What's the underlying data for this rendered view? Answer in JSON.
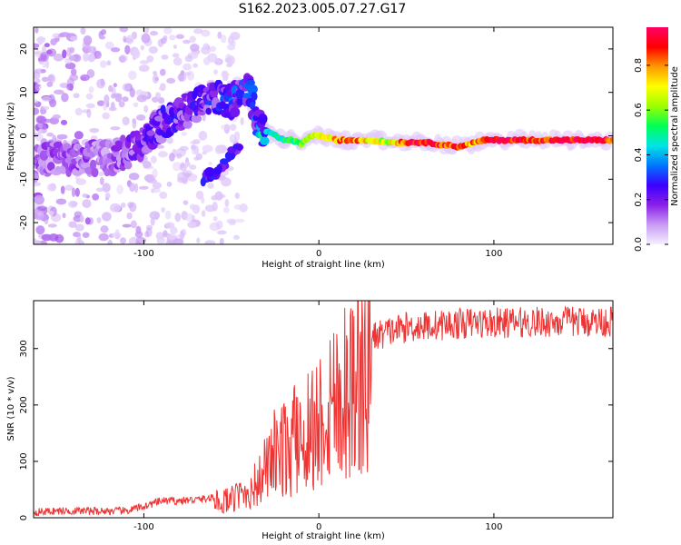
{
  "title": "S162.2023.005.07.27.G17",
  "chart_data": [
    {
      "type": "heatmap",
      "xlabel": "Height of straight line (km)",
      "ylabel": "Frequency (Hz)",
      "xlim": [
        -163,
        168
      ],
      "ylim": [
        -25,
        25
      ],
      "xticks": [
        "-100",
        "0",
        "100"
      ],
      "xtick_values": [
        -100,
        0,
        100
      ],
      "yticks": [
        "-20",
        "-10",
        "0",
        "10",
        "20"
      ],
      "ytick_values": [
        -20,
        -10,
        0,
        10,
        20
      ],
      "colorbar": {
        "label": "Normalized spectral amplitude",
        "range": [
          0,
          0.97
        ],
        "ticks": [
          "0.0",
          "0.2",
          "0.4",
          "0.6",
          "0.8"
        ],
        "tick_values": [
          0.0,
          0.2,
          0.4,
          0.6,
          0.8
        ],
        "colormap": [
          "#f5f0ff",
          "#c89bf5",
          "#8a1fe8",
          "#3b00ff",
          "#0077ff",
          "#00e5e5",
          "#00ff55",
          "#9cff00",
          "#ffff00",
          "#ff9900",
          "#ff0000",
          "#ff0066"
        ]
      },
      "ridge": {
        "x": [
          -160,
          -140,
          -120,
          -105,
          -95,
          -85,
          -75,
          -65,
          -58,
          -50,
          -45,
          -40,
          -35,
          -30,
          -25,
          -20,
          -15,
          -10,
          -5,
          0,
          10,
          20,
          30,
          40,
          50,
          60,
          70,
          80,
          85,
          90,
          95,
          100,
          110,
          120,
          130,
          140,
          150,
          160,
          168
        ],
        "y": [
          -5,
          -5,
          -5,
          -3,
          1,
          4,
          6,
          8,
          9,
          8,
          10,
          12,
          2,
          1,
          0,
          -1,
          -1,
          -2,
          0,
          0,
          -1,
          -1,
          -1,
          -1.5,
          -1.5,
          -1.5,
          -2,
          -2.5,
          -2,
          -1.5,
          -1,
          -1,
          -1,
          -1,
          -1,
          -1,
          -1,
          -1,
          -1
        ],
        "amplitude": [
          0.15,
          0.15,
          0.15,
          0.2,
          0.25,
          0.25,
          0.25,
          0.25,
          0.28,
          0.3,
          0.3,
          0.3,
          0.35,
          0.45,
          0.5,
          0.5,
          0.55,
          0.6,
          0.65,
          0.7,
          0.8,
          0.85,
          0.7,
          0.65,
          0.9,
          0.95,
          0.9,
          0.85,
          0.8,
          0.8,
          0.9,
          0.95,
          0.95,
          0.9,
          0.92,
          0.95,
          0.95,
          0.92,
          0.9
        ]
      },
      "secondary_ridge": {
        "x": [
          -68,
          -62,
          -56,
          -50,
          -45
        ],
        "y": [
          -11,
          -9,
          -7,
          -4,
          -2
        ]
      }
    },
    {
      "type": "line",
      "xlabel": "Height of straight line (km)",
      "ylabel": "SNR (10 * v/v)",
      "xlim": [
        -163,
        168
      ],
      "ylim": [
        0,
        385
      ],
      "xticks": [
        "-100",
        "0",
        "100"
      ],
      "xtick_values": [
        -100,
        0,
        100
      ],
      "yticks": [
        "0",
        "100",
        "200",
        "300"
      ],
      "ytick_values": [
        0,
        100,
        200,
        300
      ],
      "color": "#ee3333",
      "series": [
        {
          "x": [
            -163,
            -150,
            -140,
            -130,
            -120,
            -110,
            -100,
            -90,
            -80,
            -70,
            -60,
            -50,
            -45,
            -40,
            -35,
            -30,
            -25,
            -20,
            -15,
            -10,
            -5,
            0,
            5,
            10,
            15,
            20,
            25,
            30,
            40,
            50,
            60,
            70,
            80,
            90,
            100,
            110,
            120,
            130,
            140,
            150,
            160,
            168
          ],
          "values": [
            10,
            12,
            12,
            12,
            12,
            12,
            20,
            30,
            30,
            32,
            35,
            40,
            50,
            60,
            75,
            110,
            140,
            150,
            165,
            190,
            200,
            215,
            250,
            270,
            285,
            300,
            310,
            320,
            330,
            338,
            340,
            342,
            344,
            346,
            345,
            346,
            347,
            347,
            348,
            348,
            348,
            348
          ]
        }
      ]
    }
  ]
}
